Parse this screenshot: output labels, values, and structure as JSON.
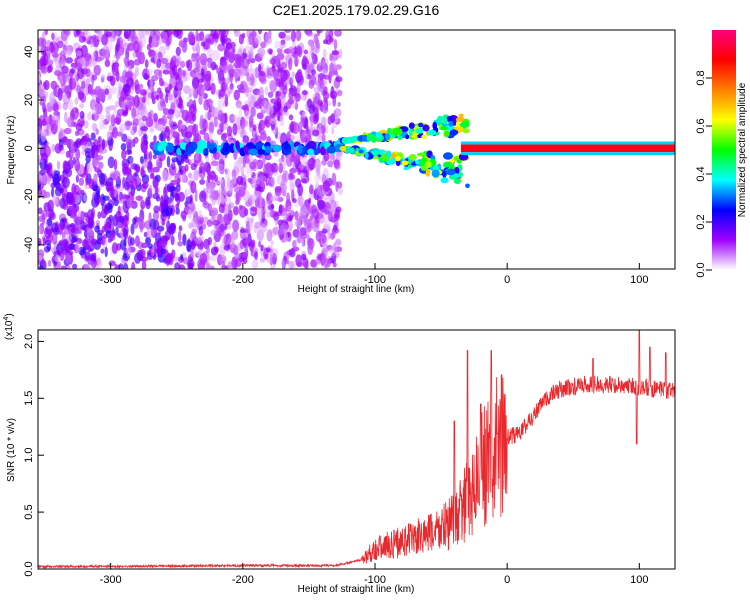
{
  "page_title": "C2E1.2025.179.02.29.G16",
  "chart_data": [
    {
      "type": "heatmap",
      "title": "C2E1.2025.179.02.29.G16",
      "xlabel": "Height of straight line (km)",
      "ylabel": "Frequency (Hz)",
      "xlim": [
        -355,
        127
      ],
      "ylim": [
        -50,
        49
      ],
      "xticks": [
        -300,
        -200,
        -100,
        0,
        100
      ],
      "yticks": [
        -40,
        -20,
        0,
        20,
        40
      ],
      "colorbar": {
        "label": "Normalized spectral amplitude",
        "range": [
          0,
          1
        ],
        "ticks": [
          "0.0",
          "0.2",
          "0.4",
          "0.6",
          "0.8"
        ],
        "colors": [
          "#ffffff",
          "#a000ff",
          "#0000ff",
          "#00ffff",
          "#00ff00",
          "#ffff00",
          "#ff8000",
          "#ff0000",
          "#ff0080"
        ]
      },
      "features": {
        "noise_region_x": [
          -355,
          -126
        ],
        "dense_lower_left_x": [
          -355,
          -240
        ],
        "central_line_x": [
          -265,
          -125
        ],
        "branch_split_x": [
          -125,
          -55
        ],
        "upper_branch_peak_freq": 12,
        "lower_branch_min_freq": -12,
        "solid_line_x": [
          -35,
          127
        ],
        "solid_line_freq": 0,
        "solid_line_amplitude": 0.9
      }
    },
    {
      "type": "line",
      "xlabel": "Height of straight line (km)",
      "ylabel": "SNR (10 * v/v)",
      "multiplier_label": "(x10",
      "multiplier_exp": "4",
      "xlim": [
        -355,
        127
      ],
      "ylim": [
        0,
        2.1
      ],
      "xticks": [
        -300,
        -200,
        -100,
        0,
        100
      ],
      "yticks": [
        0.0,
        0.5,
        1.0,
        1.5,
        2.0
      ],
      "ytick_labels": [
        "0.0",
        "0.5",
        "1.0",
        "1.5",
        "2.0"
      ],
      "series": [
        {
          "color": "#e8282d",
          "envelope": [
            [
              -355,
              0.02
            ],
            [
              -200,
              0.03
            ],
            [
              -130,
              0.03
            ],
            [
              -110,
              0.08
            ],
            [
              -100,
              0.18
            ],
            [
              -80,
              0.24
            ],
            [
              -60,
              0.3
            ],
            [
              -40,
              0.42
            ],
            [
              -30,
              0.6
            ],
            [
              -20,
              0.85
            ],
            [
              -10,
              1.05
            ],
            [
              0,
              1.15
            ],
            [
              10,
              1.2
            ],
            [
              20,
              1.35
            ],
            [
              30,
              1.5
            ],
            [
              40,
              1.58
            ],
            [
              60,
              1.62
            ],
            [
              80,
              1.62
            ],
            [
              100,
              1.6
            ],
            [
              115,
              1.57
            ],
            [
              127,
              1.56
            ]
          ],
          "spikes": [
            [
              -30,
              1.92
            ],
            [
              -12,
              1.92
            ],
            [
              -40,
              1.3
            ],
            [
              -20,
              1.45
            ],
            [
              65,
              1.85
            ],
            [
              100,
              2.1
            ],
            [
              108,
              1.95
            ],
            [
              120,
              1.9
            ],
            [
              98,
              1.1
            ]
          ]
        }
      ]
    }
  ]
}
